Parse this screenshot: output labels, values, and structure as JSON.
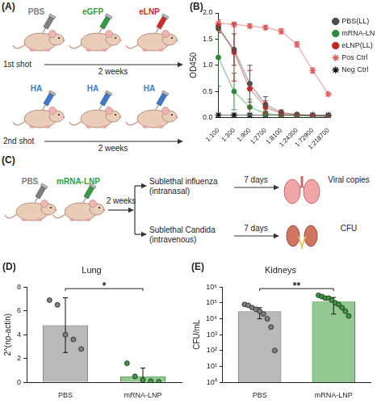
{
  "panel_A": {
    "label": "(A)",
    "rows": [
      {
        "shot": "1st shot",
        "interval": "2 weeks",
        "groups": [
          {
            "text": "PBS",
            "color": "#808080"
          },
          {
            "text": "eGFP",
            "color": "#2e9e3e"
          },
          {
            "text": "eLNP",
            "color": "#d62728"
          }
        ]
      },
      {
        "shot": "2nd shot",
        "interval": "2 weeks",
        "groups": [
          {
            "text": "HA",
            "color": "#3a7bd5"
          },
          {
            "text": "HA",
            "color": "#3a7bd5"
          },
          {
            "text": "HA",
            "color": "#3a7bd5"
          }
        ]
      }
    ]
  },
  "panel_C": {
    "label": "(C)",
    "groups": [
      {
        "text": "PBS",
        "color": "#808080"
      },
      {
        "text": "mRNA-LNP",
        "color": "#2e9e3e"
      }
    ],
    "interval": "2 weeks",
    "branches": [
      {
        "lines": [
          "Sublethal influenza",
          "(intranasal)"
        ],
        "interval": "7 days",
        "readout": "Viral copies",
        "organ": "lung"
      },
      {
        "lines": [
          "Sublethal Candida",
          "(intravenous)"
        ],
        "interval": "7 days",
        "readout": "CFU",
        "organ": "kidneys"
      }
    ]
  },
  "chart_data": [
    {
      "panel_label": "(B)",
      "type": "line",
      "y_label": "OD450",
      "categories": [
        "1:100",
        "1:300",
        "1:900",
        "1:2700",
        "1:8100",
        "1:24300",
        "1:72900",
        "1:218700"
      ],
      "series": [
        {
          "name": "PBS(LL)",
          "color": "#4d4d4d",
          "marker": "circle",
          "values": [
            1.7,
            1.3,
            0.65,
            0.25,
            0.1,
            0.06,
            0.04,
            0.03
          ],
          "errors": [
            0.08,
            0.3,
            0.35,
            0.15,
            0.05,
            0.02,
            0.01,
            0.01
          ]
        },
        {
          "name": "mRNA-LNP(LL)",
          "color": "#2e8b3e",
          "marker": "circle",
          "values": [
            1.15,
            0.5,
            0.2,
            0.08,
            0.05,
            0.04,
            0.03,
            0.03
          ],
          "errors": [
            0.55,
            0.35,
            0.15,
            0.05,
            0.02,
            0.01,
            0.01,
            0.01
          ]
        },
        {
          "name": "eLNP(LL)",
          "color": "#c62828",
          "marker": "circle",
          "values": [
            1.75,
            1.25,
            0.55,
            0.2,
            0.08,
            0.05,
            0.04,
            0.03
          ],
          "errors": [
            0.12,
            0.55,
            0.35,
            0.12,
            0.04,
            0.02,
            0.01,
            0.01
          ]
        },
        {
          "name": "Pos Ctrl",
          "color": "#e05a5a",
          "marker": "star",
          "values": [
            1.8,
            1.78,
            1.75,
            1.72,
            1.65,
            1.4,
            0.9,
            0.45
          ],
          "errors": [
            0.04,
            0.04,
            0.04,
            0.04,
            0.05,
            0.05,
            0.05,
            0.04
          ]
        },
        {
          "name": "Neg Ctrl",
          "color": "#111111",
          "marker": "star",
          "values": [
            0.05,
            0.05,
            0.05,
            0.05,
            0.05,
            0.05,
            0.05,
            0.05
          ]
        }
      ],
      "ylim": [
        0,
        2
      ],
      "yticks": [
        {
          "value": 0,
          "label": "0.0"
        },
        0.5,
        {
          "value": 1,
          "label": "1.0"
        },
        1.5,
        {
          "value": 2,
          "label": "2.0"
        }
      ],
      "legend": "right",
      "grid": false
    },
    {
      "panel_label": "(D)",
      "type": "bar",
      "title": "Lung",
      "y_label": "2^(np-actin)",
      "categories": [
        "PBS",
        "mRNA-LNP"
      ],
      "values": [
        4.8,
        0.5
      ],
      "errors": [
        2.3,
        0.7
      ],
      "points": [
        [
          6.9,
          6.5,
          4.0,
          3.6,
          2.8
        ],
        [
          1.6,
          0.5,
          0.2,
          0.1,
          0.05
        ]
      ],
      "colors": [
        "#7f7f7f",
        "#3a9a3a"
      ],
      "ylim": [
        0,
        8
      ],
      "yticks": [
        0,
        2,
        4,
        6,
        8
      ],
      "annotations": [
        {
          "text": "*",
          "between": [
            "PBS",
            "mRNA-LNP"
          ]
        }
      ],
      "grid": false
    },
    {
      "panel_label": "(E)",
      "type": "bar",
      "title": "Kidneys",
      "y_label": "CFU/mL",
      "categories": [
        "PBS",
        "mRNA-LNP"
      ],
      "values": [
        30000,
        120000
      ],
      "errors": [
        20000,
        100000
      ],
      "points": [
        [
          80000,
          70000,
          50000,
          40000,
          30000,
          20000,
          10000,
          3000,
          100
        ],
        [
          300000,
          250000,
          200000,
          200000,
          150000,
          100000,
          80000,
          50000,
          30000,
          15000
        ]
      ],
      "colors": [
        "#7f7f7f",
        "#3a9a3a"
      ],
      "log": "y",
      "ylim": [
        1,
        1000000
      ],
      "yticks": [
        {
          "value": 1,
          "label": "10⁰"
        },
        {
          "value": 10,
          "label": "10¹"
        },
        {
          "value": 100,
          "label": "10²"
        },
        {
          "value": 1000,
          "label": "10³"
        },
        {
          "value": 10000,
          "label": "10⁴"
        },
        {
          "value": 100000,
          "label": "10⁵"
        },
        {
          "value": 1000000,
          "label": "10⁶"
        }
      ],
      "annotations": [
        {
          "text": "**",
          "between": [
            "PBS",
            "mRNA-LNP"
          ]
        }
      ],
      "grid": false
    }
  ]
}
